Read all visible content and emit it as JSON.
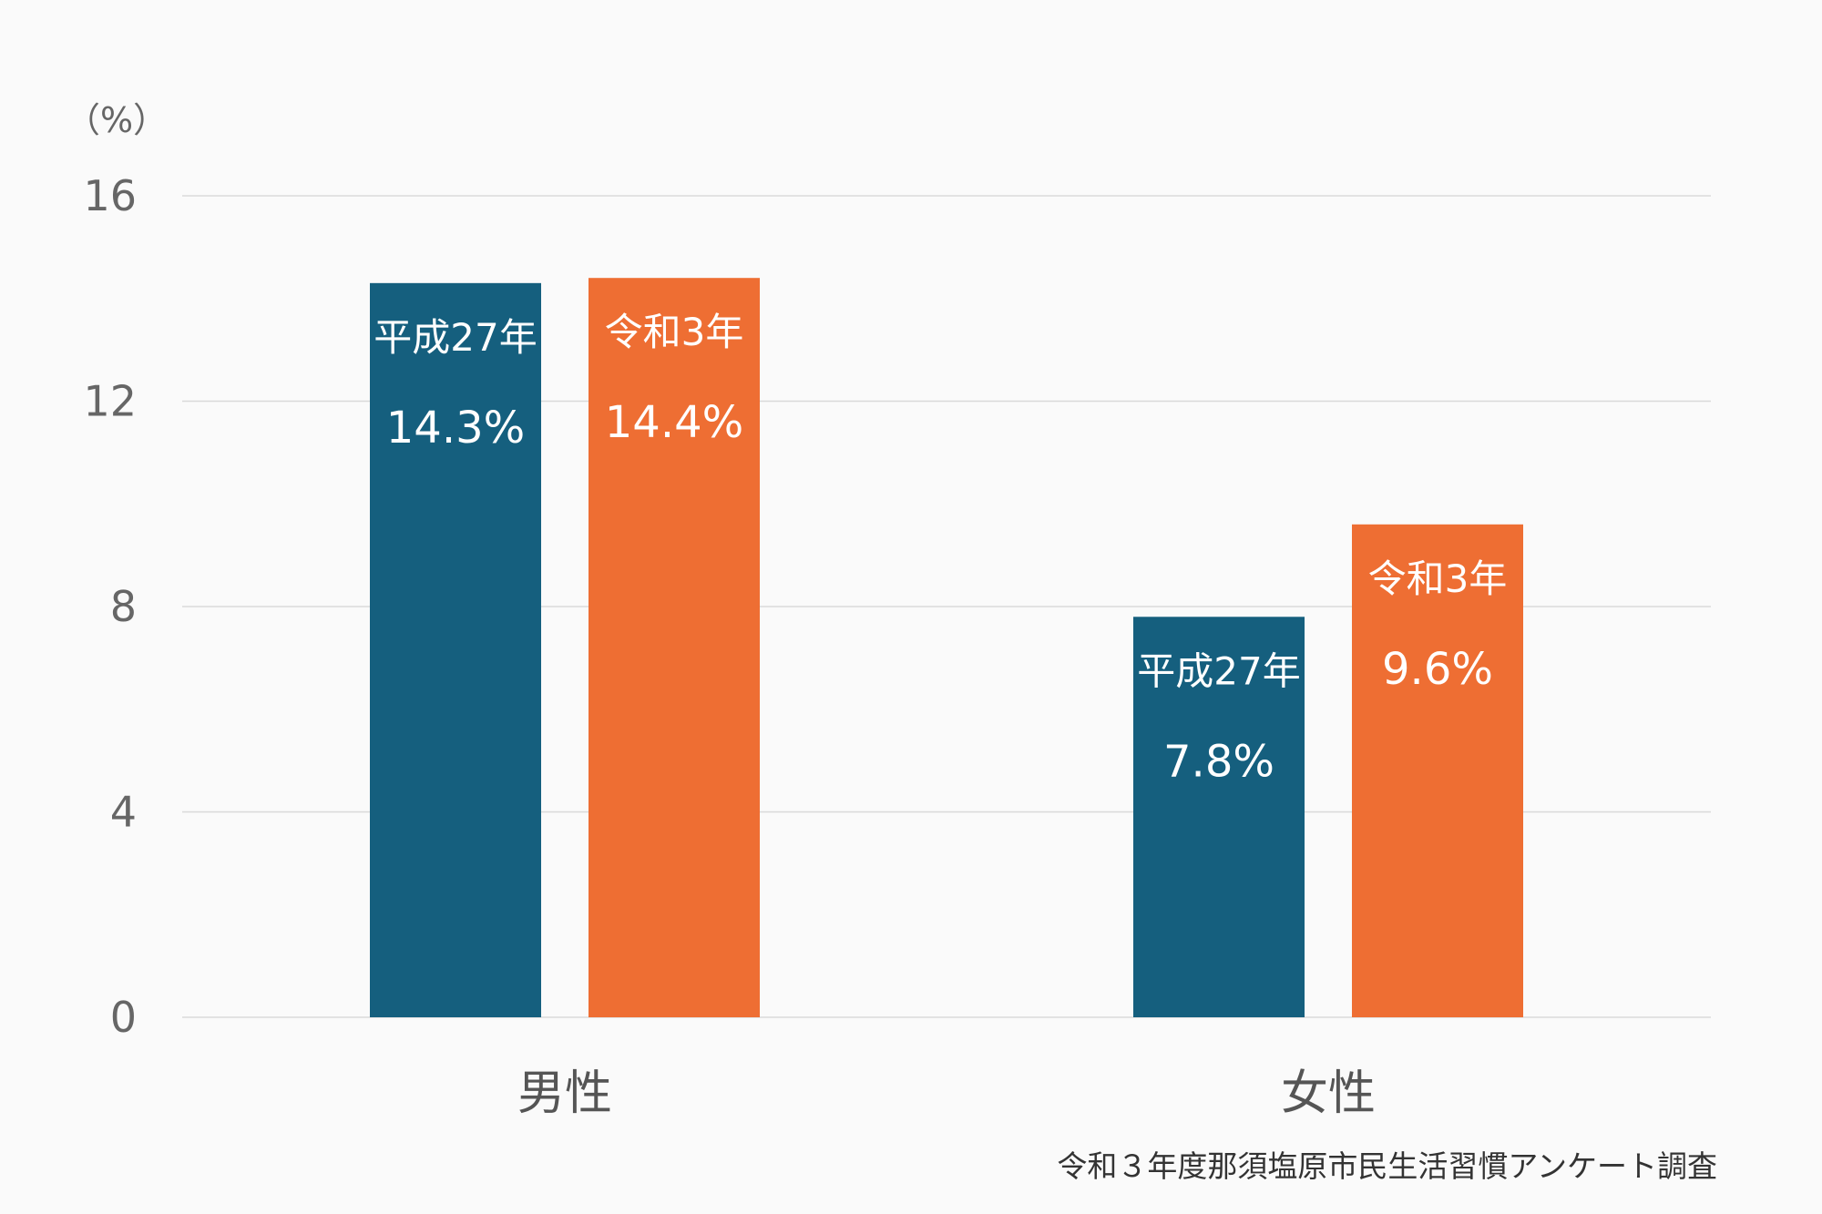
{
  "chart_data": {
    "type": "bar",
    "y_unit": "（%）",
    "ylim": [
      0,
      16
    ],
    "yticks": [
      0,
      4,
      8,
      12,
      16
    ],
    "grid": true,
    "categories": [
      "男性",
      "女性"
    ],
    "series": [
      {
        "name": "平成27年",
        "color": "#155f7e",
        "values": [
          14.3,
          7.8
        ],
        "labels": [
          "14.3%",
          "7.8%"
        ]
      },
      {
        "name": "令和3年",
        "color": "#ee6e33",
        "values": [
          14.4,
          9.6
        ],
        "labels": [
          "14.4%",
          "9.6%"
        ]
      }
    ],
    "source": "令和３年度那須塩原市民生活習慣アンケート調査"
  }
}
